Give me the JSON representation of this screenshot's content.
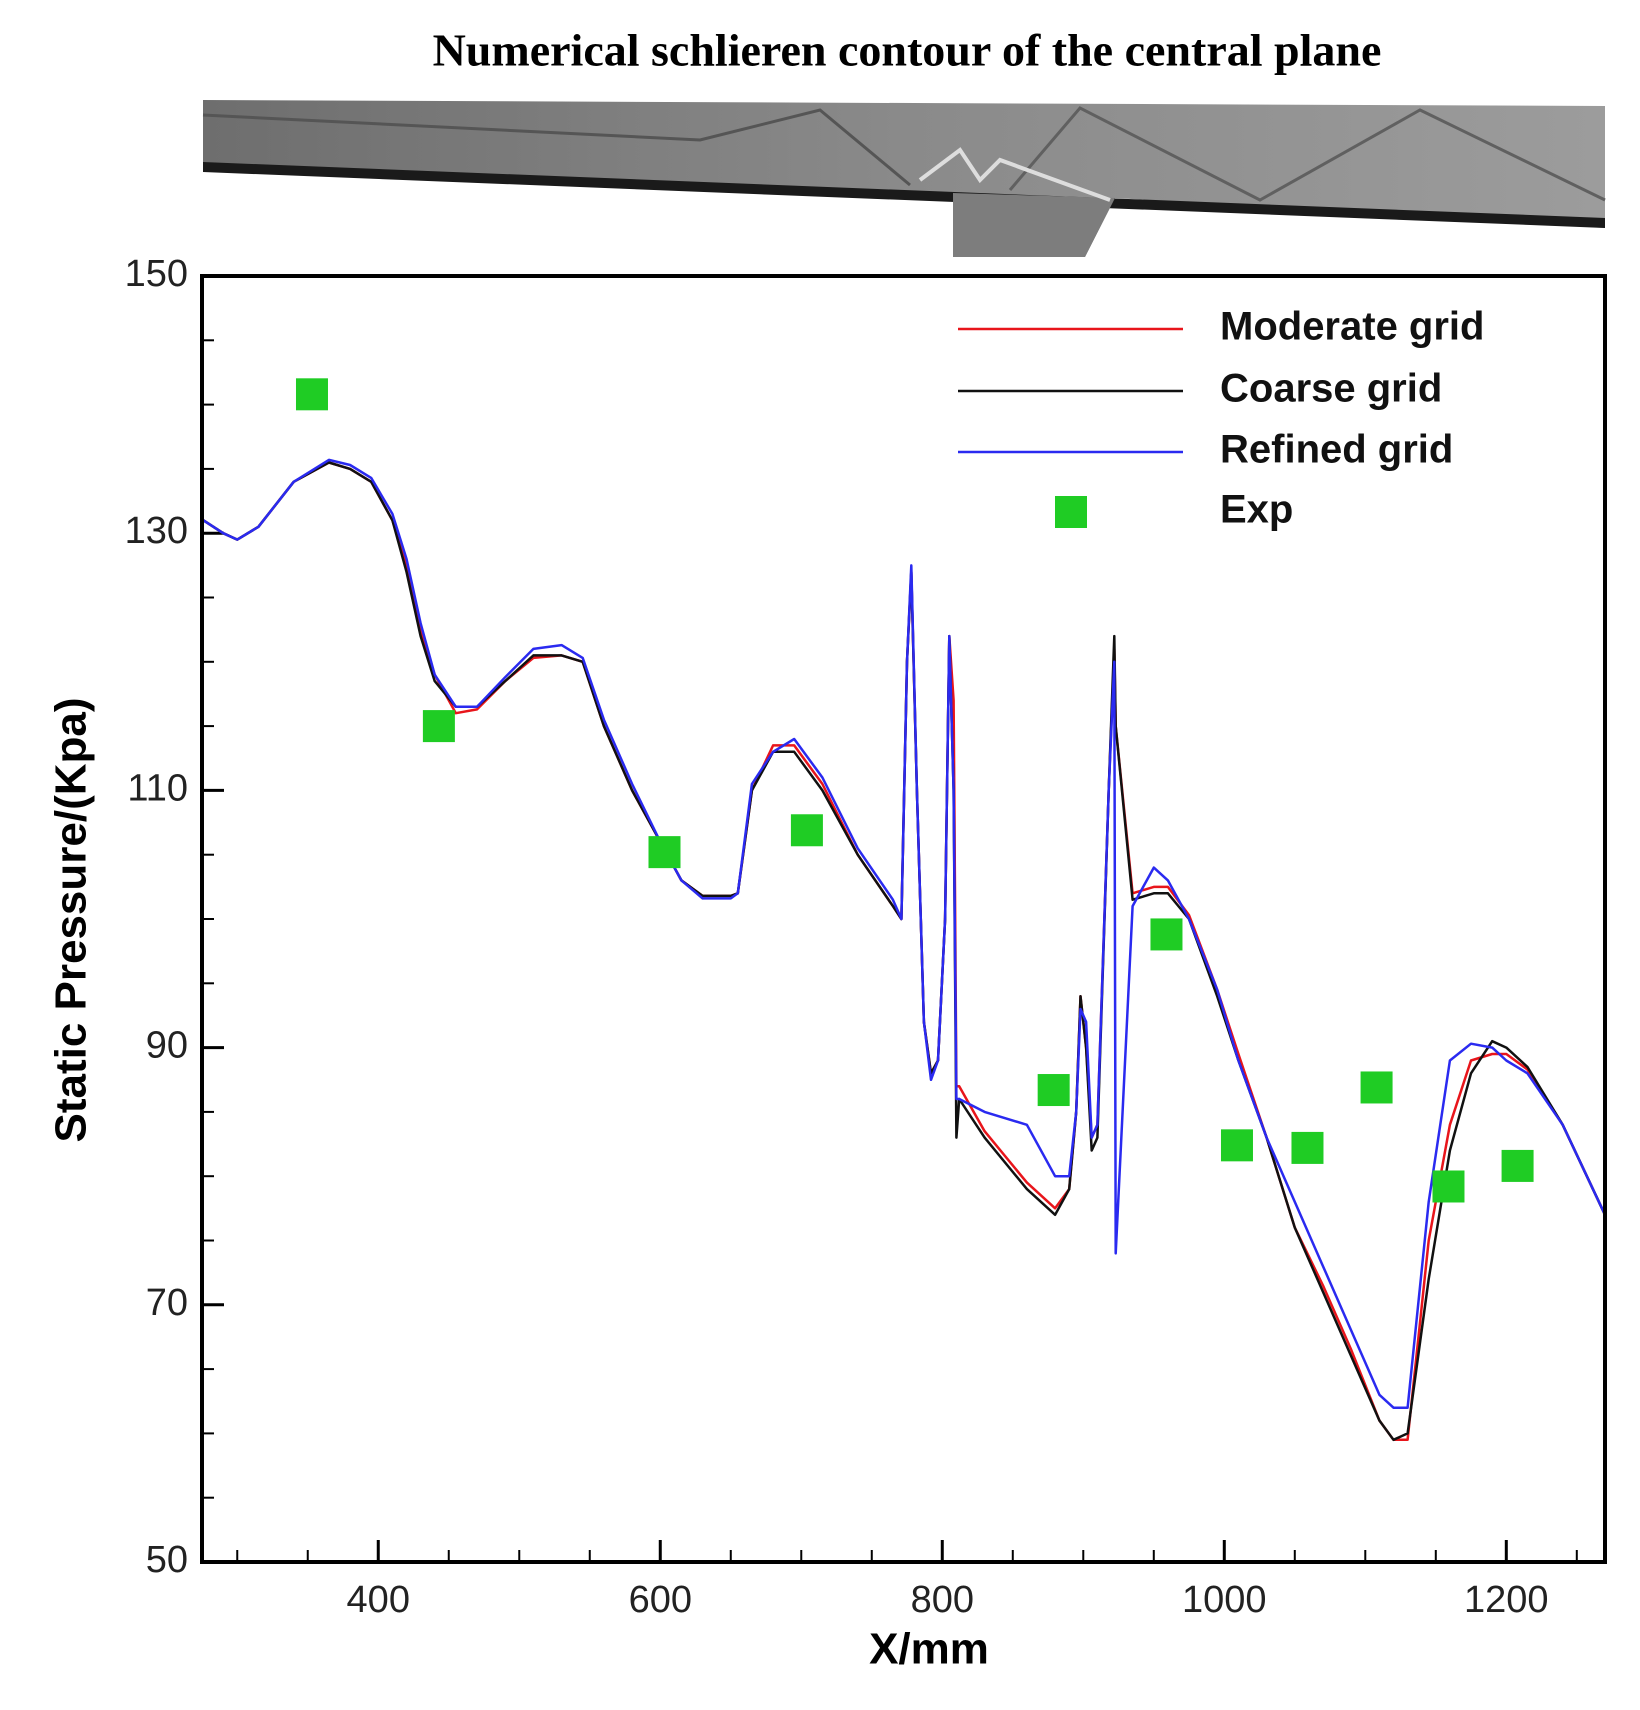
{
  "chart_data": {
    "type": "line",
    "title": "Numerical schlieren contour of the central plane",
    "xlabel": "X/mm",
    "ylabel": "Static Pressure/(Kpa)",
    "xlim": [
      275,
      1270
    ],
    "ylim": [
      50,
      150
    ],
    "xticks": [
      400,
      600,
      800,
      1000,
      1200
    ],
    "yticks": [
      50,
      70,
      90,
      110,
      130,
      150
    ],
    "xminorticks": [
      300,
      350,
      450,
      500,
      550,
      650,
      700,
      750,
      850,
      900,
      950,
      1050,
      1100,
      1150,
      1250
    ],
    "yminorticks": [
      55,
      60,
      65,
      75,
      80,
      85,
      95,
      100,
      105,
      115,
      120,
      125,
      135,
      140,
      145
    ],
    "legend": "upper right",
    "x": [
      276,
      290,
      300,
      315,
      340,
      365,
      380,
      395,
      410,
      420,
      430,
      440,
      455,
      470,
      490,
      510,
      530,
      545,
      560,
      580,
      600,
      615,
      630,
      650,
      655,
      665,
      680,
      695,
      715,
      740,
      765,
      771,
      775,
      778,
      782,
      787,
      792,
      797,
      802,
      805,
      808,
      810,
      812,
      830,
      860,
      880,
      890,
      895,
      898,
      902,
      906,
      910,
      918,
      922,
      923,
      935,
      950,
      960,
      975,
      995,
      1010,
      1030,
      1050,
      1070,
      1090,
      1110,
      1120,
      1130,
      1145,
      1160,
      1175,
      1190,
      1200,
      1215,
      1240,
      1270
    ],
    "series": [
      {
        "name": "Moderate grid",
        "color": "#e8151b",
        "mode": "line",
        "values": [
          131,
          130,
          129.5,
          130.5,
          134,
          135.5,
          135,
          134,
          131,
          127.5,
          122.5,
          119,
          116,
          116.3,
          118.5,
          120.3,
          120.5,
          120,
          115,
          110,
          106,
          103,
          101.8,
          101.8,
          102,
          110,
          113.5,
          113.5,
          110.5,
          105,
          101,
          100,
          120,
          127,
          110,
          92,
          88,
          89,
          100,
          122,
          117,
          87,
          87,
          83.5,
          79.5,
          77.5,
          79,
          85,
          94,
          90,
          83,
          84,
          110,
          121,
          115,
          102,
          102.5,
          102.5,
          100.3,
          94.5,
          89.5,
          83,
          76,
          71.5,
          66.5,
          61,
          59.5,
          59.5,
          75,
          84,
          89,
          89.5,
          89.5,
          88.3,
          84,
          77
        ]
      },
      {
        "name": "Coarse grid",
        "color": "#111111",
        "mode": "line",
        "values": [
          131,
          130,
          129.5,
          130.5,
          134,
          135.5,
          135,
          134,
          131,
          127,
          122,
          118.5,
          116.5,
          116.5,
          118.5,
          120.5,
          120.5,
          120,
          115,
          110,
          106,
          103,
          101.8,
          101.8,
          102,
          110,
          113,
          113,
          110,
          105,
          101,
          100,
          120,
          127,
          110,
          92,
          88,
          89,
          100,
          122,
          110,
          83,
          86,
          83,
          79,
          77,
          79,
          85,
          94,
          90,
          82,
          83,
          110,
          122,
          115,
          101.5,
          102,
          102,
          100,
          94,
          89,
          83,
          76,
          71,
          66,
          61,
          59.5,
          60,
          72,
          82,
          88,
          90.5,
          90,
          88.5,
          84,
          77
        ]
      },
      {
        "name": "Refined grid",
        "color": "#2a2af0",
        "mode": "line",
        "values": [
          131,
          130,
          129.5,
          130.5,
          134,
          135.7,
          135.3,
          134.3,
          131.5,
          128,
          123,
          119,
          116.5,
          116.5,
          118.8,
          121,
          121.3,
          120.3,
          115.5,
          110.5,
          106,
          103,
          101.6,
          101.6,
          102,
          110.5,
          113,
          114,
          111,
          105.5,
          101.5,
          100,
          120,
          127.5,
          110,
          92,
          87.5,
          89,
          100,
          122,
          110,
          86,
          86,
          85,
          84,
          80,
          80,
          85,
          93,
          92,
          83,
          84,
          110,
          120,
          74,
          101,
          104,
          103,
          100,
          94.5,
          89,
          83,
          78,
          73,
          68,
          63,
          62,
          62,
          78,
          89,
          90.3,
          90,
          89,
          88,
          84,
          77
        ]
      },
      {
        "name": "Exp",
        "color": "#1fcc24",
        "mode": "markers",
        "x": [
          353,
          443,
          603,
          704,
          879,
          959,
          1009,
          1059,
          1108,
          1159,
          1208
        ],
        "values": [
          140.8,
          115,
          105.2,
          106.9,
          86.7,
          98.8,
          82.4,
          82.2,
          86.9,
          79.2,
          80.8
        ]
      }
    ]
  }
}
